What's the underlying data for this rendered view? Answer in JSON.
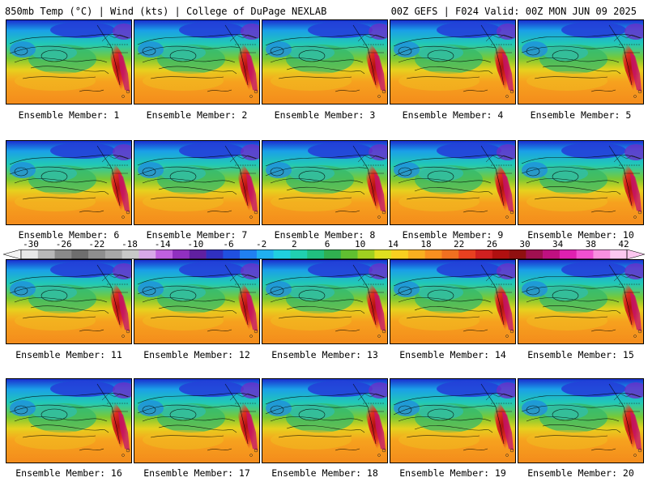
{
  "header": {
    "left": "850mb Temp (°C) | Wind (kts) | College of DuPage NEXLAB",
    "right": "00Z GEFS | F024 Valid: 00Z MON JUN 09 2025"
  },
  "panels": [
    {
      "label": "Ensemble Member:",
      "member": "1"
    },
    {
      "label": "Ensemble Member:",
      "member": "2"
    },
    {
      "label": "Ensemble Member:",
      "member": "3"
    },
    {
      "label": "Ensemble Member:",
      "member": "4"
    },
    {
      "label": "Ensemble Member:",
      "member": "5"
    },
    {
      "label": "Ensemble Member:",
      "member": "6"
    },
    {
      "label": "Ensemble Member:",
      "member": "7"
    },
    {
      "label": "Ensemble Member:",
      "member": "8"
    },
    {
      "label": "Ensemble Member:",
      "member": "9"
    },
    {
      "label": "Ensemble Member:",
      "member": "10"
    },
    {
      "label": "Ensemble Member:",
      "member": "11"
    },
    {
      "label": "Ensemble Member:",
      "member": "12"
    },
    {
      "label": "Ensemble Member:",
      "member": "13"
    },
    {
      "label": "Ensemble Member:",
      "member": "14"
    },
    {
      "label": "Ensemble Member:",
      "member": "15"
    },
    {
      "label": "Ensemble Member:",
      "member": "16"
    },
    {
      "label": "Ensemble Member:",
      "member": "17"
    },
    {
      "label": "Ensemble Member:",
      "member": "18"
    },
    {
      "label": "Ensemble Member:",
      "member": "19"
    },
    {
      "label": "Ensemble Member:",
      "member": "20"
    }
  ],
  "colorbar": {
    "ticks": [
      "-30",
      "-26",
      "-22",
      "-18",
      "-14",
      "-10",
      "-6",
      "-2",
      "2",
      "6",
      "10",
      "14",
      "18",
      "22",
      "26",
      "30",
      "34",
      "38",
      "42"
    ],
    "colors": [
      "#e8e8e8",
      "#b8b8b8",
      "#8a8a8a",
      "#6e6e6e",
      "#8e8e8e",
      "#a8a8a8",
      "#c8c8c8",
      "#d8a8e8",
      "#c060e0",
      "#9030c0",
      "#6020a0",
      "#3030c0",
      "#2050e0",
      "#2080f0",
      "#20b0f0",
      "#20d0e0",
      "#20d0b0",
      "#20c080",
      "#30b050",
      "#60c030",
      "#a0d020",
      "#e0e020",
      "#f8d020",
      "#f8b020",
      "#f89020",
      "#f07020",
      "#e84020",
      "#d02020",
      "#b01010",
      "#901010",
      "#a01050",
      "#c01080",
      "#e020b0",
      "#f050d0",
      "#f890e0",
      "#fcc8f0"
    ]
  }
}
